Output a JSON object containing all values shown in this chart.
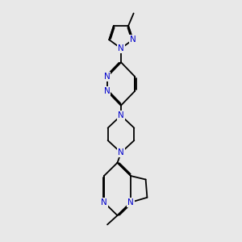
{
  "background_color": "#e8e8e8",
  "bond_color": "#000000",
  "atom_color": "#0000cc",
  "lw": 1.3,
  "fs": 7.5,
  "dbo": 0.045,
  "xlim": [
    0,
    10
  ],
  "ylim": [
    0,
    10
  ]
}
